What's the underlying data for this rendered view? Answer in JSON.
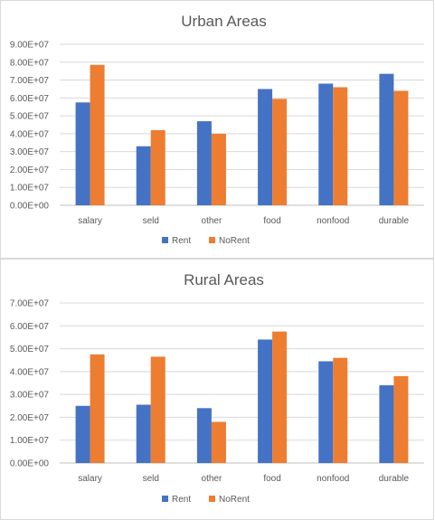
{
  "colors": {
    "Rent": "#4472c4",
    "NoRent": "#ed7d31"
  },
  "chart_data": [
    {
      "type": "bar",
      "title": "Urban Areas",
      "categories": [
        "salary",
        "seld",
        "other",
        "food",
        "nonfood",
        "durable"
      ],
      "ylim": [
        0,
        90000000
      ],
      "ytick_labels": [
        "0.00E+00",
        "1.00E+07",
        "2.00E+07",
        "3.00E+07",
        "4.00E+07",
        "5.00E+07",
        "6.00E+07",
        "7.00E+07",
        "8.00E+07",
        "9.00E+07"
      ],
      "grid": true,
      "legend": "bottom",
      "series": [
        {
          "name": "Rent",
          "values": [
            57500000,
            33000000,
            47000000,
            65000000,
            68000000,
            73500000
          ]
        },
        {
          "name": "NoRent",
          "values": [
            78500000,
            42000000,
            40000000,
            59500000,
            66000000,
            64000000
          ]
        }
      ]
    },
    {
      "type": "bar",
      "title": "Rural Areas",
      "categories": [
        "salary",
        "seld",
        "other",
        "food",
        "nonfood",
        "durable"
      ],
      "ylim": [
        0,
        70000000
      ],
      "ytick_labels": [
        "0.00E+00",
        "1.00E+07",
        "2.00E+07",
        "3.00E+07",
        "4.00E+07",
        "5.00E+07",
        "6.00E+07",
        "7.00E+07"
      ],
      "grid": true,
      "legend": "bottom",
      "series": [
        {
          "name": "Rent",
          "values": [
            25000000,
            25500000,
            24000000,
            54000000,
            44500000,
            34000000
          ]
        },
        {
          "name": "NoRent",
          "values": [
            47500000,
            46500000,
            18000000,
            57500000,
            46000000,
            38000000
          ]
        }
      ]
    }
  ]
}
